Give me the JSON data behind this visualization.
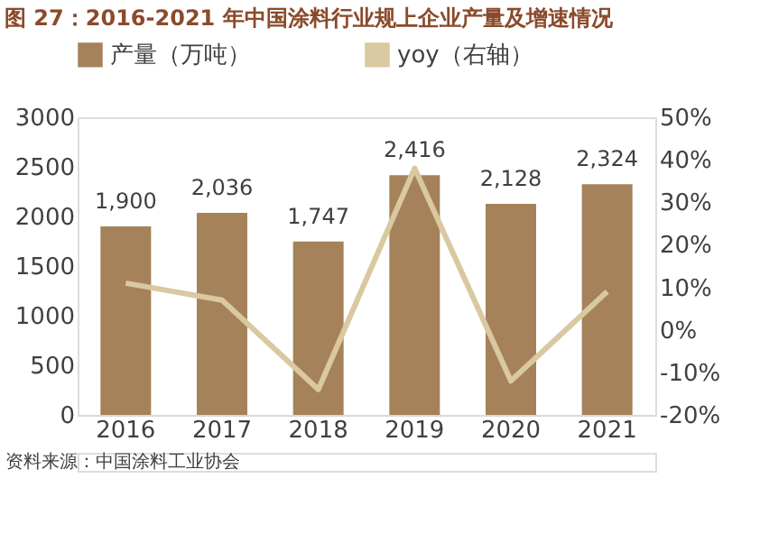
{
  "chart_data": {
    "type": "bar",
    "title": "图 27：2016-2021 年中国涂料行业规上企业产量及增速情况",
    "categories": [
      "2016",
      "2017",
      "2018",
      "2019",
      "2020",
      "2021"
    ],
    "series": [
      {
        "name": "产量（万吨）",
        "color": "#a5825a",
        "values": [
          1900,
          2036,
          1747,
          2416,
          2128,
          2324
        ],
        "value_labels": [
          "1,900",
          "2,036",
          "1,747",
          "2,416",
          "2,128",
          "2,324"
        ]
      },
      {
        "name": "yoy（右轴）",
        "type": "line",
        "axis": "y2",
        "color": "#d9c8a0",
        "values": [
          11,
          7,
          -14,
          38,
          -12,
          9
        ]
      }
    ],
    "ylim": [
      0,
      3000
    ],
    "yticks": [
      0,
      500,
      1000,
      1500,
      2000,
      2500,
      3000
    ],
    "y2lim": [
      -20,
      50
    ],
    "y2ticks": [
      {
        "value": -20,
        "label": "-20%"
      },
      {
        "value": -10,
        "label": "-10%"
      },
      {
        "value": 0,
        "label": "0%"
      },
      {
        "value": 10,
        "label": "10%"
      },
      {
        "value": 20,
        "label": "20%"
      },
      {
        "value": 30,
        "label": "30%"
      },
      {
        "value": 40,
        "label": "40%"
      },
      {
        "value": 50,
        "label": "50%"
      }
    ],
    "legend": "top",
    "marker": "none",
    "grid": false,
    "annotations": [
      "资料来源：中国涂料工业协会"
    ]
  }
}
